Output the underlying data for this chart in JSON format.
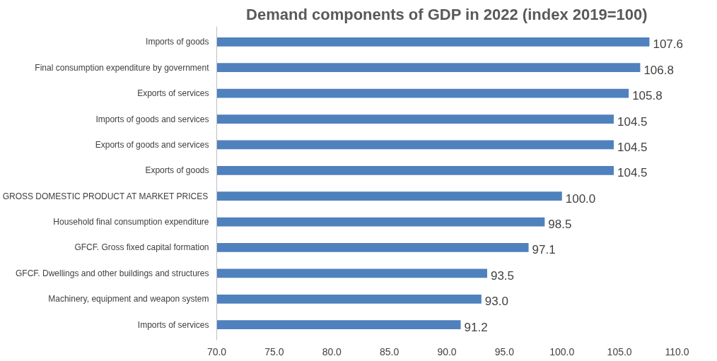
{
  "chart_data": {
    "type": "bar",
    "orientation": "horizontal",
    "title": "Demand components of GDP in 2022 (index 2019=100)",
    "categories": [
      "Imports of goods",
      "Final consumption expenditure by government",
      "Exports of services",
      "Imports of goods and services",
      "Exports of goods and services",
      "Exports of goods",
      "GROSS DOMESTIC PRODUCT AT MARKET PRICES",
      "Household final consumption expenditure",
      "GFCF. Gross fixed capital formation",
      "GFCF. Dwellings and other buildings and structures",
      "Machinery, equipment and weapon system",
      "Imports of services"
    ],
    "values": [
      107.6,
      106.8,
      105.8,
      104.5,
      104.5,
      104.5,
      100.0,
      98.5,
      97.1,
      93.5,
      93.0,
      91.2
    ],
    "value_labels": [
      "107.6",
      "106.8",
      "105.8",
      "104.5",
      "104.5",
      "104.5",
      "100.0",
      "98.5",
      "97.1",
      "93.5",
      "93.0",
      "91.2"
    ],
    "color": "#4f81bd",
    "xlim": [
      70,
      110
    ],
    "xticks": [
      {
        "value": 70,
        "label": "70.0"
      },
      {
        "value": 75,
        "label": "75.0"
      },
      {
        "value": 80,
        "label": "80.0"
      },
      {
        "value": 85,
        "label": "85.0"
      },
      {
        "value": 90,
        "label": "90.0"
      },
      {
        "value": 95,
        "label": "95.0"
      },
      {
        "value": 100,
        "label": "100.0"
      },
      {
        "value": 105,
        "label": "105.0"
      },
      {
        "value": 110,
        "label": "110.0"
      }
    ],
    "grid": false
  }
}
